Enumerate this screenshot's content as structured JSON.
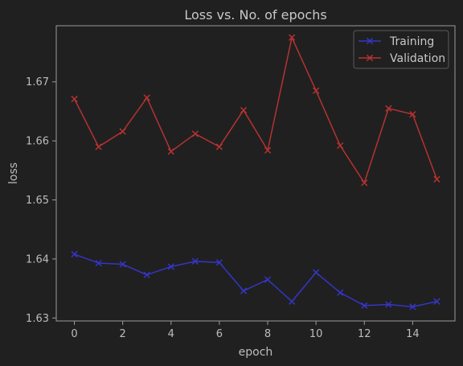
{
  "chart_data": {
    "type": "line",
    "title": "Loss vs. No. of epochs",
    "xlabel": "epoch",
    "ylabel": "loss",
    "xlim": [
      -0.75,
      15.75
    ],
    "ylim": [
      1.6295,
      1.6795
    ],
    "xticks": [
      0,
      2,
      4,
      6,
      8,
      10,
      12,
      14
    ],
    "yticks": [
      1.63,
      1.64,
      1.65,
      1.66,
      1.67
    ],
    "ytick_labels": [
      "1.63",
      "1.64",
      "1.65",
      "1.66",
      "1.67"
    ],
    "grid": false,
    "legend": "top-right",
    "x": [
      0,
      1,
      2,
      3,
      4,
      5,
      6,
      7,
      8,
      9,
      10,
      11,
      12,
      13,
      14,
      15
    ],
    "series": [
      {
        "name": "Training",
        "color": "#3535c8",
        "marker": "x",
        "values": [
          1.6408,
          1.6393,
          1.6391,
          1.6373,
          1.6387,
          1.6396,
          1.6394,
          1.6346,
          1.6365,
          1.6328,
          1.6377,
          1.6343,
          1.6321,
          1.6323,
          1.6319,
          1.6328
        ]
      },
      {
        "name": "Validation",
        "color": "#b53232",
        "marker": "x",
        "values": [
          1.6671,
          1.659,
          1.6616,
          1.6673,
          1.6582,
          1.6612,
          1.659,
          1.6652,
          1.6584,
          1.6775,
          1.6685,
          1.6592,
          1.6529,
          1.6655,
          1.6645,
          1.6535
        ]
      }
    ]
  }
}
